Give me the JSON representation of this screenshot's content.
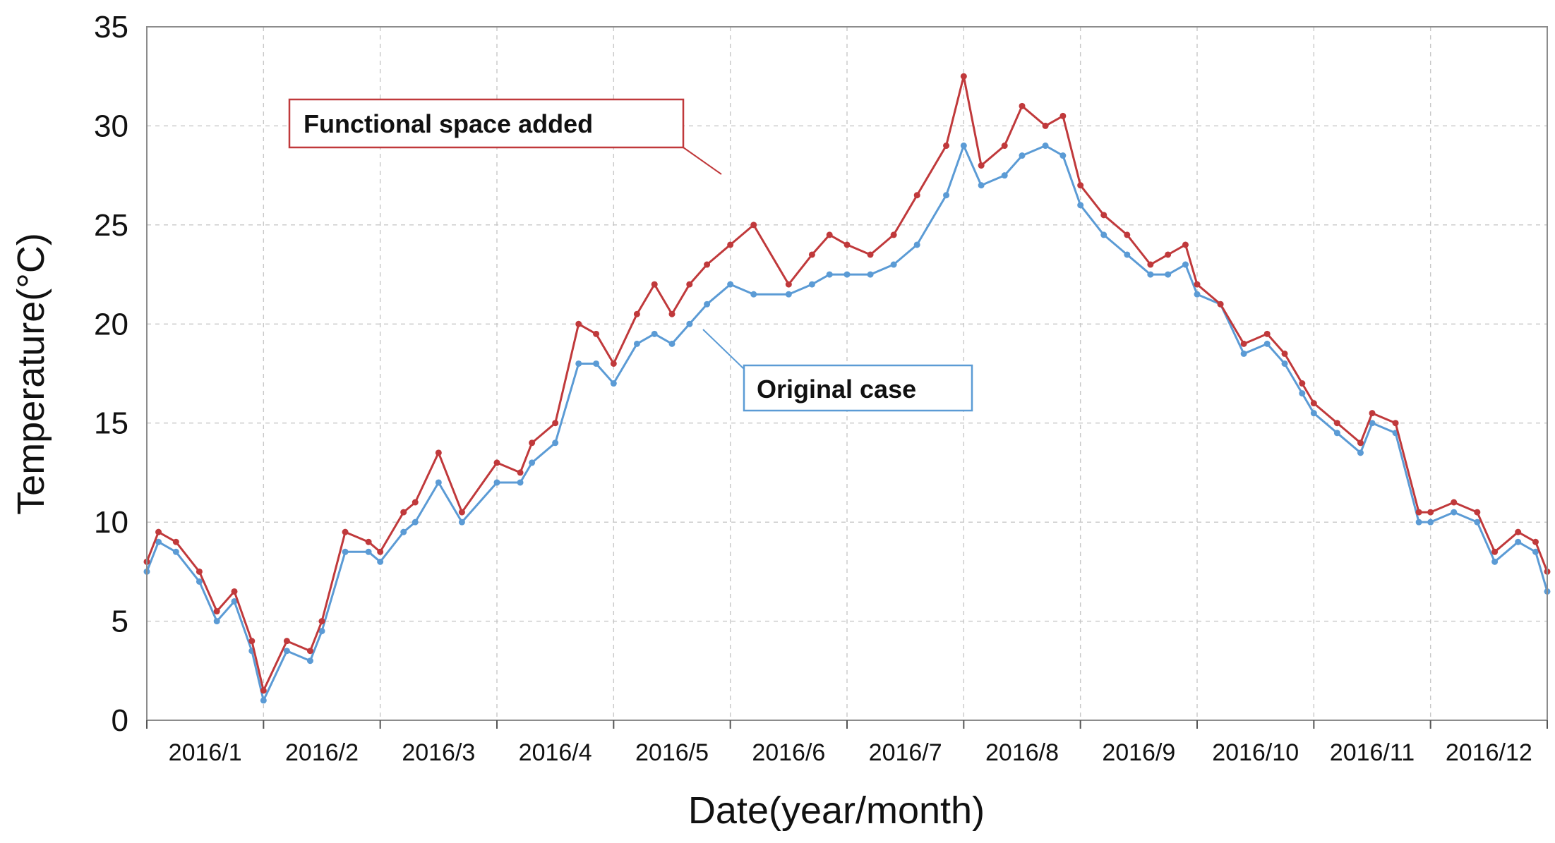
{
  "chart_data": {
    "type": "line",
    "title": "",
    "xlabel": "Date(year/month)",
    "ylabel": "Temperature(°C)",
    "ylim": [
      0,
      35
    ],
    "yticks": [
      0,
      5,
      10,
      15,
      20,
      25,
      30,
      35
    ],
    "grid": true,
    "x_unit": "month",
    "x_range": [
      0,
      12
    ],
    "categories": [
      "2016/1",
      "2016/2",
      "2016/3",
      "2016/4",
      "2016/5",
      "2016/6",
      "2016/7",
      "2016/8",
      "2016/9",
      "2016/10",
      "2016/11",
      "2016/12"
    ],
    "series": [
      {
        "name": "Functional space added",
        "color": "#c0393b",
        "x": [
          0.0,
          0.1,
          0.25,
          0.45,
          0.6,
          0.75,
          0.9,
          1.0,
          1.2,
          1.4,
          1.5,
          1.7,
          1.9,
          2.0,
          2.2,
          2.3,
          2.5,
          2.7,
          3.0,
          3.2,
          3.3,
          3.5,
          3.7,
          3.85,
          4.0,
          4.2,
          4.35,
          4.5,
          4.65,
          4.8,
          5.0,
          5.2,
          5.5,
          5.7,
          5.85,
          6.0,
          6.2,
          6.4,
          6.6,
          6.85,
          7.0,
          7.15,
          7.35,
          7.5,
          7.7,
          7.85,
          8.0,
          8.2,
          8.4,
          8.6,
          8.75,
          8.9,
          9.0,
          9.2,
          9.4,
          9.6,
          9.75,
          9.9,
          10.0,
          10.2,
          10.4,
          10.5,
          10.7,
          10.9,
          11.0,
          11.2,
          11.4,
          11.55,
          11.75,
          11.9,
          12.0
        ],
        "y": [
          8.0,
          9.5,
          9.0,
          7.5,
          5.5,
          6.5,
          4.0,
          1.5,
          4.0,
          3.5,
          5.0,
          9.5,
          9.0,
          8.5,
          10.5,
          11.0,
          13.5,
          10.5,
          13.0,
          12.5,
          14.0,
          15.0,
          20.0,
          19.5,
          18.0,
          20.5,
          22.0,
          20.5,
          22.0,
          23.0,
          24.0,
          25.0,
          22.0,
          23.5,
          24.5,
          24.0,
          23.5,
          24.5,
          26.5,
          29.0,
          32.5,
          28.0,
          29.0,
          31.0,
          30.0,
          30.5,
          27.0,
          25.5,
          24.5,
          23.0,
          23.5,
          24.0,
          22.0,
          21.0,
          19.0,
          19.5,
          18.5,
          17.0,
          16.0,
          15.0,
          14.0,
          15.5,
          15.0,
          10.5,
          10.5,
          11.0,
          10.5,
          8.5,
          9.5,
          9.0,
          7.5
        ]
      },
      {
        "name": "Original case",
        "color": "#5b9bd5",
        "x": [
          0.0,
          0.1,
          0.25,
          0.45,
          0.6,
          0.75,
          0.9,
          1.0,
          1.2,
          1.4,
          1.5,
          1.7,
          1.9,
          2.0,
          2.2,
          2.3,
          2.5,
          2.7,
          3.0,
          3.2,
          3.3,
          3.5,
          3.7,
          3.85,
          4.0,
          4.2,
          4.35,
          4.5,
          4.65,
          4.8,
          5.0,
          5.2,
          5.5,
          5.7,
          5.85,
          6.0,
          6.2,
          6.4,
          6.6,
          6.85,
          7.0,
          7.15,
          7.35,
          7.5,
          7.7,
          7.85,
          8.0,
          8.2,
          8.4,
          8.6,
          8.75,
          8.9,
          9.0,
          9.2,
          9.4,
          9.6,
          9.75,
          9.9,
          10.0,
          10.2,
          10.4,
          10.5,
          10.7,
          10.9,
          11.0,
          11.2,
          11.4,
          11.55,
          11.75,
          11.9,
          12.0
        ],
        "y": [
          7.5,
          9.0,
          8.5,
          7.0,
          5.0,
          6.0,
          3.5,
          1.0,
          3.5,
          3.0,
          4.5,
          8.5,
          8.5,
          8.0,
          9.5,
          10.0,
          12.0,
          10.0,
          12.0,
          12.0,
          13.0,
          14.0,
          18.0,
          18.0,
          17.0,
          19.0,
          19.5,
          19.0,
          20.0,
          21.0,
          22.0,
          21.5,
          21.5,
          22.0,
          22.5,
          22.5,
          22.5,
          23.0,
          24.0,
          26.5,
          29.0,
          27.0,
          27.5,
          28.5,
          29.0,
          28.5,
          26.0,
          24.5,
          23.5,
          22.5,
          22.5,
          23.0,
          21.5,
          21.0,
          18.5,
          19.0,
          18.0,
          16.5,
          15.5,
          14.5,
          13.5,
          15.0,
          14.5,
          10.0,
          10.0,
          10.5,
          10.0,
          8.0,
          9.0,
          8.5,
          6.5
        ]
      }
    ],
    "annotations": [
      {
        "text": "Functional space added",
        "target_series": "Functional space added"
      },
      {
        "text": "Original case",
        "target_series": "Original case"
      }
    ]
  }
}
